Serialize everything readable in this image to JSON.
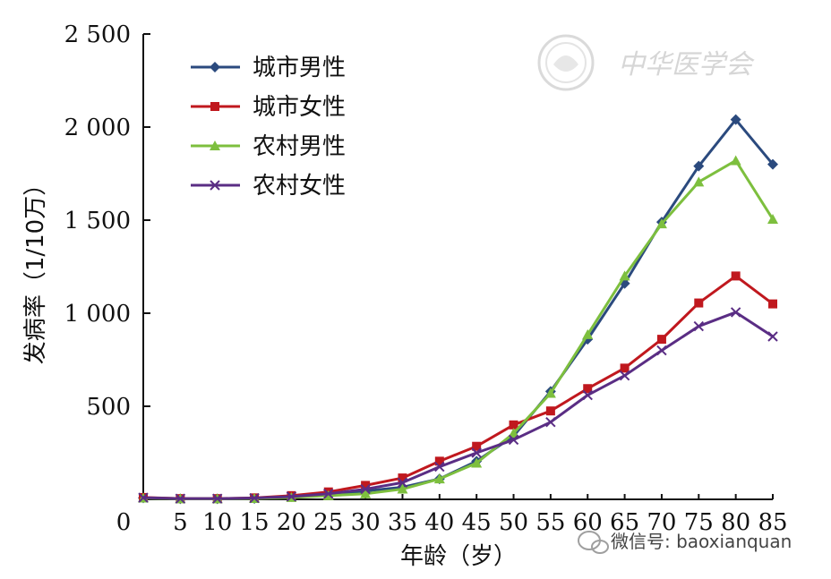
{
  "watermark": {
    "seal_text": "中华医学会",
    "wechat_label": "微信号: baoxianquan"
  },
  "chart_data": {
    "type": "line",
    "title": "",
    "xlabel": "年龄（岁）",
    "ylabel": "发病率（1/10万）",
    "x": [
      0,
      5,
      10,
      15,
      20,
      25,
      30,
      35,
      40,
      45,
      50,
      55,
      60,
      65,
      70,
      75,
      80,
      85
    ],
    "x_tick_labels": [
      "0",
      "5",
      "10",
      "15",
      "20",
      "25",
      "30",
      "35",
      "40",
      "45",
      "50",
      "55",
      "60",
      "65",
      "70",
      "75",
      "80",
      "85"
    ],
    "y_ticks": [
      500,
      1000,
      1500,
      2000,
      2500
    ],
    "y_tick_labels": [
      "500",
      "1 000",
      "1 500",
      "2 000",
      "2 500"
    ],
    "ylim": [
      0,
      2500
    ],
    "xlim": [
      0,
      85
    ],
    "grid": false,
    "legend_position": "top-left",
    "series": [
      {
        "name": "城市男性",
        "color": "#2b4a7e",
        "marker": "diamond",
        "values": [
          8,
          3,
          3,
          5,
          15,
          25,
          45,
          65,
          110,
          205,
          340,
          580,
          860,
          1160,
          1490,
          1790,
          2040,
          1800
        ]
      },
      {
        "name": "城市女性",
        "color": "#c0181e",
        "marker": "square",
        "values": [
          10,
          4,
          4,
          8,
          20,
          40,
          75,
          115,
          205,
          285,
          400,
          475,
          595,
          705,
          860,
          1055,
          1200,
          1050
        ]
      },
      {
        "name": "农村男性",
        "color": "#7dbf3e",
        "marker": "triangle",
        "values": [
          7,
          3,
          3,
          5,
          10,
          20,
          30,
          55,
          110,
          195,
          355,
          570,
          885,
          1200,
          1480,
          1705,
          1820,
          1505
        ]
      },
      {
        "name": "农村女性",
        "color": "#5a2d84",
        "marker": "x",
        "values": [
          9,
          4,
          4,
          7,
          15,
          30,
          55,
          90,
          175,
          250,
          320,
          415,
          560,
          665,
          800,
          930,
          1005,
          875
        ]
      }
    ]
  }
}
